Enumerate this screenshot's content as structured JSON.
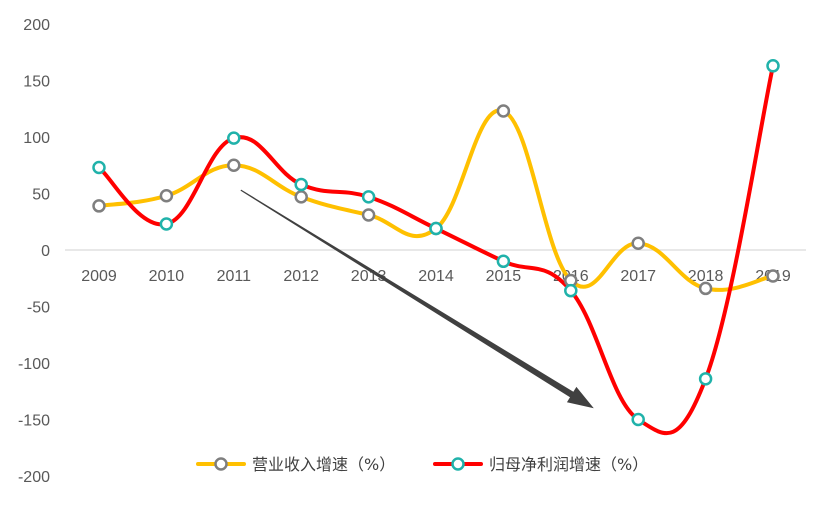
{
  "chart_data": {
    "type": "line",
    "title": "",
    "xlabel": "",
    "ylabel": "",
    "categories": [
      "2009",
      "2010",
      "2011",
      "2012",
      "2013",
      "2014",
      "2015",
      "2016",
      "2017",
      "2018",
      "2019"
    ],
    "ylim": [
      -200,
      200
    ],
    "yticks": [
      "200",
      "150",
      "100",
      "50",
      "0",
      "-50",
      "-100",
      "-150",
      "-200"
    ],
    "ytick_values": [
      200,
      150,
      100,
      50,
      0,
      -50,
      -100,
      -150,
      -200
    ],
    "grid": false,
    "legend_position": "bottom",
    "series": [
      {
        "name": "营业收入增速（%）",
        "color": "#FFC000",
        "marker_color": "#7F7F7F",
        "values": [
          39,
          48,
          75,
          47,
          31,
          19,
          123,
          -27,
          6,
          -34,
          -23
        ]
      },
      {
        "name": "归母净利润增速（%）",
        "color": "#FF0000",
        "marker_color": "#20B2AA",
        "values": [
          73,
          23,
          99,
          58,
          47,
          19,
          -10,
          -36,
          -150,
          -114,
          163
        ]
      }
    ],
    "annotations": [
      {
        "type": "arrow",
        "from": [
          "2011",
          53
        ],
        "to": [
          "2016",
          -140
        ],
        "color": "#404040"
      }
    ]
  }
}
